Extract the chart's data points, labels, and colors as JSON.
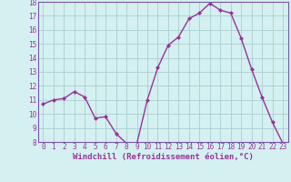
{
  "x": [
    0,
    1,
    2,
    3,
    4,
    5,
    6,
    7,
    8,
    9,
    10,
    11,
    12,
    13,
    14,
    15,
    16,
    17,
    18,
    19,
    20,
    21,
    22,
    23
  ],
  "y": [
    10.7,
    11.0,
    11.1,
    11.6,
    11.2,
    9.7,
    9.8,
    8.6,
    7.9,
    7.9,
    11.0,
    13.3,
    14.9,
    15.5,
    16.8,
    17.2,
    17.9,
    17.4,
    17.2,
    15.4,
    13.2,
    11.2,
    9.4,
    7.9
  ],
  "line_color": "#993399",
  "marker": "D",
  "marker_size": 2.0,
  "bg_color": "#d4f0f0",
  "grid_color": "#aacece",
  "xlabel": "Windchill (Refroidissement éolien,°C)",
  "ylim": [
    8,
    18
  ],
  "xlim": [
    -0.5,
    23.5
  ],
  "yticks": [
    8,
    9,
    10,
    11,
    12,
    13,
    14,
    15,
    16,
    17,
    18
  ],
  "xticks": [
    0,
    1,
    2,
    3,
    4,
    5,
    6,
    7,
    8,
    9,
    10,
    11,
    12,
    13,
    14,
    15,
    16,
    17,
    18,
    19,
    20,
    21,
    22,
    23
  ],
  "tick_label_size": 5.5,
  "xlabel_size": 6.5,
  "line_width": 1.0,
  "spine_color": "#7755aa"
}
